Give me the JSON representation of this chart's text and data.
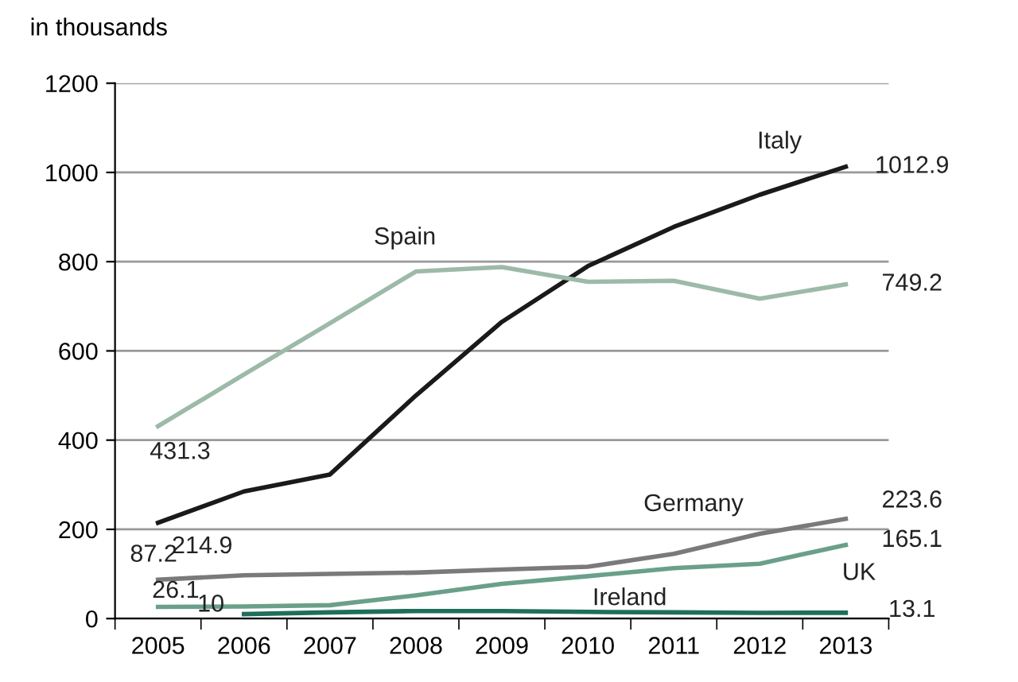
{
  "chart_data": {
    "type": "line",
    "ylabel": "in thousands",
    "categories": [
      "2005",
      "2006",
      "2007",
      "2008",
      "2009",
      "2010",
      "2011",
      "2012",
      "2013"
    ],
    "series": [
      {
        "name": "Italy",
        "color": "#1a1a1a",
        "values": [
          214.9,
          285,
          323,
          500,
          665,
          790,
          878,
          950,
          1012.9
        ],
        "value_labels": [
          "214.9",
          null,
          null,
          null,
          null,
          null,
          null,
          null,
          "1012.9"
        ]
      },
      {
        "name": "Spain",
        "color": "#9dbaa8",
        "values": [
          431.3,
          547,
          662,
          778,
          788,
          755,
          757,
          717,
          749.2
        ],
        "value_labels": [
          "431.3",
          null,
          null,
          null,
          null,
          null,
          null,
          null,
          "749.2"
        ]
      },
      {
        "name": "Germany",
        "color": "#7a7a7a",
        "values": [
          87.2,
          97,
          100,
          103,
          110,
          116,
          145,
          190,
          223.6
        ],
        "value_labels": [
          "87.2",
          null,
          null,
          null,
          null,
          null,
          null,
          null,
          "223.6"
        ]
      },
      {
        "name": "UK",
        "color": "#6aa08a",
        "values": [
          26.1,
          27,
          30,
          52,
          78,
          95,
          113,
          123,
          165.1
        ],
        "value_labels": [
          "26.1",
          null,
          null,
          null,
          null,
          null,
          null,
          null,
          "165.1"
        ]
      },
      {
        "name": "Ireland",
        "color": "#1f6e5a",
        "values": [
          null,
          10,
          14,
          17,
          17,
          15,
          14,
          13,
          13.1
        ],
        "value_labels": [
          null,
          "10",
          null,
          null,
          null,
          null,
          null,
          null,
          "13.1"
        ]
      }
    ],
    "ylim": [
      0,
      1200
    ],
    "yticks": [
      0,
      200,
      400,
      600,
      800,
      1000,
      1200
    ],
    "grid": "y",
    "legend": false,
    "line_style": "solid",
    "marker": "none"
  }
}
